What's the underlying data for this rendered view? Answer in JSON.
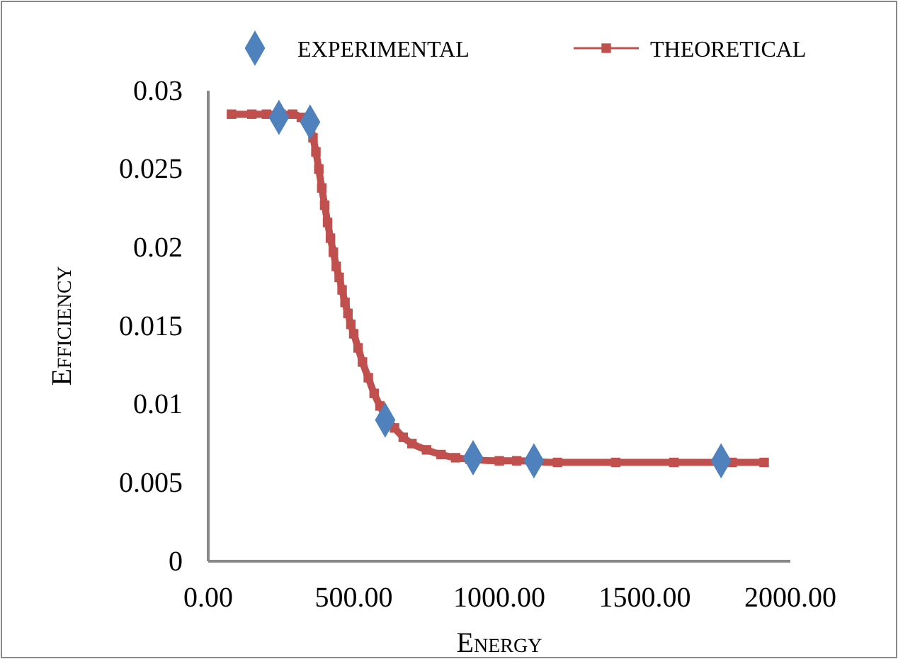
{
  "chart_data": {
    "type": "line",
    "xlabel": "Energy",
    "ylabel": "Efficiency",
    "legend": "top",
    "grid": false,
    "xlim": [
      0,
      2000
    ],
    "xticks": [
      {
        "value": 0,
        "label": "0.00"
      },
      {
        "value": 500,
        "label": "500.00"
      },
      {
        "value": 1000,
        "label": "1000.00"
      },
      {
        "value": 1500,
        "label": "1500.00"
      },
      {
        "value": 2000,
        "label": "2000.00"
      }
    ],
    "ylim": [
      0,
      0.03
    ],
    "yticks": [
      0,
      0.005,
      0.01,
      0.015,
      0.02,
      0.025,
      0.03
    ],
    "series": [
      {
        "name": "EXPERIMENTAL",
        "type": "scatter",
        "marker": "diamond",
        "color": "#4f81bd",
        "x": [
          243,
          350,
          608,
          910,
          1119,
          1762
        ],
        "values": [
          0.0283,
          0.028,
          0.009,
          0.0066,
          0.0064,
          0.0064
        ]
      },
      {
        "name": "THEORETICAL",
        "marker": "square",
        "line_style": "solid",
        "color": "#c0504d",
        "x": [
          80,
          150,
          200,
          250,
          290,
          320,
          350,
          360,
          370,
          380,
          390,
          400,
          410,
          420,
          430,
          440,
          450,
          460,
          470,
          480,
          490,
          500,
          515,
          530,
          550,
          570,
          590,
          610,
          640,
          670,
          700,
          750,
          800,
          850,
          900,
          1000,
          1060,
          1200,
          1400,
          1600,
          1800,
          1910
        ],
        "values": [
          0.0285,
          0.0285,
          0.0285,
          0.0285,
          0.0285,
          0.0283,
          0.0278,
          0.027,
          0.0261,
          0.025,
          0.0238,
          0.0227,
          0.0216,
          0.0206,
          0.0197,
          0.0188,
          0.0181,
          0.0173,
          0.0165,
          0.0158,
          0.0151,
          0.0145,
          0.0136,
          0.0127,
          0.0117,
          0.0107,
          0.0099,
          0.0092,
          0.0085,
          0.0079,
          0.0075,
          0.0071,
          0.0068,
          0.0066,
          0.0065,
          0.0064,
          0.0064,
          0.0063,
          0.0063,
          0.0063,
          0.0063,
          0.0063
        ]
      }
    ]
  }
}
